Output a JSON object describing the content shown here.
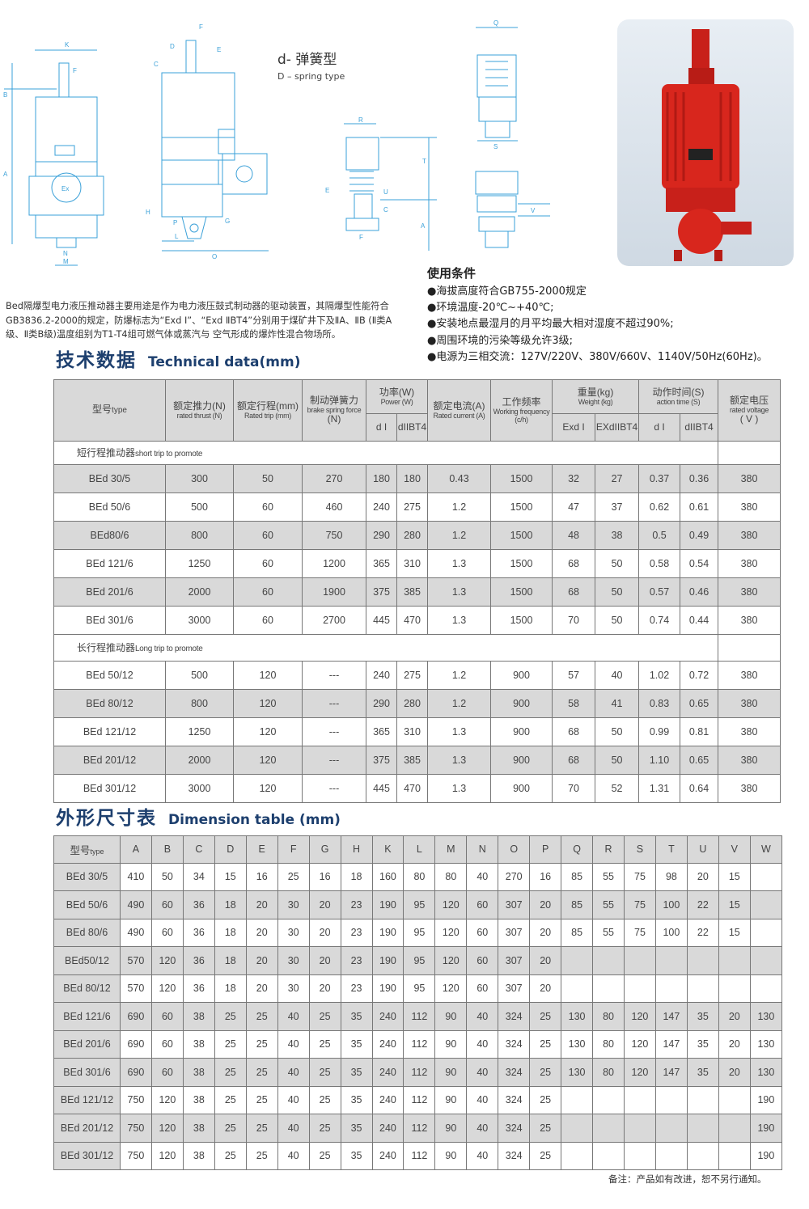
{
  "diagram": {
    "labels_front": [
      "K",
      "F",
      "B",
      "A",
      "N",
      "M",
      "Ex"
    ],
    "labels_side": [
      "F",
      "D",
      "E",
      "C",
      "H",
      "P",
      "G",
      "L",
      "O"
    ],
    "labels_spring": [
      "R",
      "T",
      "E",
      "U",
      "C",
      "A",
      "F"
    ],
    "labels_detail": [
      "Q",
      "S",
      "V"
    ],
    "spring_title": "d-   弹簧型",
    "spring_sub": "D – spring type"
  },
  "photo": {
    "description_icon": "red-actuator-image",
    "color": "#d8261d"
  },
  "intro": "Bed隔爆型电力液压推动器主要用途是作为电力液压鼓式制动器的驱动装置，其隔爆型性能符合GB3836.2-2000的规定，防爆标志为“Exd I”、“Exd ⅡBT4”分别用于煤矿井下及ⅡA、ⅡB (Ⅱ类A级、Ⅱ类B级)温度组别为T1-T4组可燃气体或蒸汽与 空气形成的爆炸性混合物场所。",
  "conditions": {
    "title": "使用条件",
    "items": [
      "●海拔高度符合GB755-2000规定",
      "●环境温度-20℃~+40℃;",
      "●安装地点最湿月的月平均最大相对湿度不超过90%;",
      "●周围环境的污染等级允许3级;",
      "●电源为三相交流：127V/220V、380V/660V、1140V/50Hz(60Hz)。"
    ]
  },
  "tech": {
    "title_cn": "技术数据",
    "title_en": "Technical data(mm)",
    "headers": {
      "type": [
        "型号",
        "type"
      ],
      "thrust": [
        "额定推力(N)",
        "rated thrust (N)"
      ],
      "trip": [
        "额定行程(mm)",
        "Rated trip (mm)"
      ],
      "spring": [
        "制动弹簧力",
        "brake spring force",
        "(N)"
      ],
      "power": [
        "功率(W)",
        "Power (W)"
      ],
      "current": [
        "额定电流(A)",
        "Rated current (A)"
      ],
      "freq": [
        "工作频率",
        "Working frequency",
        "(c/h)"
      ],
      "weight": [
        "重量(kg)",
        "Weight (kg)"
      ],
      "time": [
        "动作时间(S)",
        "action time (S)"
      ],
      "voltage": [
        "额定电压",
        "rated voltage",
        "( V )"
      ],
      "sub": [
        "d I",
        "dIIBT4",
        "Exd I",
        "EXdIIBT4",
        "d I",
        "dIIBT4"
      ]
    },
    "sections": [
      {
        "label": [
          "短行程推动器",
          "short trip to promote"
        ],
        "rows": [
          [
            "BEd 30/5",
            "300",
            "50",
            "270",
            "180",
            "180",
            "0.43",
            "1500",
            "32",
            "27",
            "0.37",
            "0.36",
            "380"
          ],
          [
            "BEd 50/6",
            "500",
            "60",
            "460",
            "240",
            "275",
            "1.2",
            "1500",
            "47",
            "37",
            "0.62",
            "0.61",
            "380"
          ],
          [
            "BEd80/6",
            "800",
            "60",
            "750",
            "290",
            "280",
            "1.2",
            "1500",
            "48",
            "38",
            "0.5",
            "0.49",
            "380"
          ],
          [
            "BEd 121/6",
            "1250",
            "60",
            "1200",
            "365",
            "310",
            "1.3",
            "1500",
            "68",
            "50",
            "0.58",
            "0.54",
            "380"
          ],
          [
            "BEd 201/6",
            "2000",
            "60",
            "1900",
            "375",
            "385",
            "1.3",
            "1500",
            "68",
            "50",
            "0.57",
            "0.46",
            "380"
          ],
          [
            "BEd 301/6",
            "3000",
            "60",
            "2700",
            "445",
            "470",
            "1.3",
            "1500",
            "70",
            "50",
            "0.74",
            "0.44",
            "380"
          ]
        ]
      },
      {
        "label": [
          "长行程推动器",
          "Long trip to promote"
        ],
        "rows": [
          [
            "BEd 50/12",
            "500",
            "120",
            "---",
            "240",
            "275",
            "1.2",
            "900",
            "57",
            "40",
            "1.02",
            "0.72",
            "380"
          ],
          [
            "BEd 80/12",
            "800",
            "120",
            "---",
            "290",
            "280",
            "1.2",
            "900",
            "58",
            "41",
            "0.83",
            "0.65",
            "380"
          ],
          [
            "BEd 121/12",
            "1250",
            "120",
            "---",
            "365",
            "310",
            "1.3",
            "900",
            "68",
            "50",
            "0.99",
            "0.81",
            "380"
          ],
          [
            "BEd 201/12",
            "2000",
            "120",
            "---",
            "375",
            "385",
            "1.3",
            "900",
            "68",
            "50",
            "1.10",
            "0.65",
            "380"
          ],
          [
            "BEd 301/12",
            "3000",
            "120",
            "---",
            "445",
            "470",
            "1.3",
            "900",
            "70",
            "52",
            "1.31",
            "0.64",
            "380"
          ]
        ]
      }
    ]
  },
  "dim": {
    "title_cn": "外形尺寸表",
    "title_en": "Dimension table (mm)",
    "type_header": [
      "型号",
      "type"
    ],
    "columns": [
      "A",
      "B",
      "C",
      "D",
      "E",
      "F",
      "G",
      "H",
      "K",
      "L",
      "M",
      "N",
      "O",
      "P",
      "Q",
      "R",
      "S",
      "T",
      "U",
      "V",
      "W"
    ],
    "rows": [
      [
        "BEd 30/5",
        "410",
        "50",
        "34",
        "15",
        "16",
        "25",
        "16",
        "18",
        "160",
        "80",
        "80",
        "40",
        "270",
        "16",
        "85",
        "55",
        "75",
        "98",
        "20",
        "15",
        ""
      ],
      [
        "BEd 50/6",
        "490",
        "60",
        "36",
        "18",
        "20",
        "30",
        "20",
        "23",
        "190",
        "95",
        "120",
        "60",
        "307",
        "20",
        "85",
        "55",
        "75",
        "100",
        "22",
        "15",
        ""
      ],
      [
        "BEd 80/6",
        "490",
        "60",
        "36",
        "18",
        "20",
        "30",
        "20",
        "23",
        "190",
        "95",
        "120",
        "60",
        "307",
        "20",
        "85",
        "55",
        "75",
        "100",
        "22",
        "15",
        ""
      ],
      [
        "BEd50/12",
        "570",
        "120",
        "36",
        "18",
        "20",
        "30",
        "20",
        "23",
        "190",
        "95",
        "120",
        "60",
        "307",
        "20",
        "",
        "",
        "",
        "",
        "",
        "",
        ""
      ],
      [
        "BEd 80/12",
        "570",
        "120",
        "36",
        "18",
        "20",
        "30",
        "20",
        "23",
        "190",
        "95",
        "120",
        "60",
        "307",
        "20",
        "",
        "",
        "",
        "",
        "",
        "",
        ""
      ],
      [
        "BEd 121/6",
        "690",
        "60",
        "38",
        "25",
        "25",
        "40",
        "25",
        "35",
        "240",
        "112",
        "90",
        "40",
        "324",
        "25",
        "130",
        "80",
        "120",
        "147",
        "35",
        "20",
        "130"
      ],
      [
        "BEd 201/6",
        "690",
        "60",
        "38",
        "25",
        "25",
        "40",
        "25",
        "35",
        "240",
        "112",
        "90",
        "40",
        "324",
        "25",
        "130",
        "80",
        "120",
        "147",
        "35",
        "20",
        "130"
      ],
      [
        "BEd 301/6",
        "690",
        "60",
        "38",
        "25",
        "25",
        "40",
        "25",
        "35",
        "240",
        "112",
        "90",
        "40",
        "324",
        "25",
        "130",
        "80",
        "120",
        "147",
        "35",
        "20",
        "130"
      ],
      [
        "BEd 121/12",
        "750",
        "120",
        "38",
        "25",
        "25",
        "40",
        "25",
        "35",
        "240",
        "112",
        "90",
        "40",
        "324",
        "25",
        "",
        "",
        "",
        "",
        "",
        "",
        "190"
      ],
      [
        "BEd 201/12",
        "750",
        "120",
        "38",
        "25",
        "25",
        "40",
        "25",
        "35",
        "240",
        "112",
        "90",
        "40",
        "324",
        "25",
        "",
        "",
        "",
        "",
        "",
        "",
        "190"
      ],
      [
        "BEd 301/12",
        "750",
        "120",
        "38",
        "25",
        "25",
        "40",
        "25",
        "35",
        "240",
        "112",
        "90",
        "40",
        "324",
        "25",
        "",
        "",
        "",
        "",
        "",
        "",
        "190"
      ]
    ]
  },
  "note": "备注：产品如有改进，恕不另行通知。"
}
